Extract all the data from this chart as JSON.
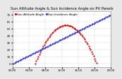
{
  "title": "Sun Altitude Angle & Sun Incidence Angle on PV Panels",
  "legend_labels": [
    "Sun Altitude Angle",
    "Sun Incidence Angle"
  ],
  "colors": [
    "#cc0000",
    "#3333cc"
  ],
  "background_color": "#e8e8e8",
  "plot_bg": "#ffffff",
  "ylim": [
    -5,
    75
  ],
  "xlim": [
    0,
    24
  ],
  "grid_color": "#aaaaaa",
  "marker_size": 1.2,
  "title_fontsize": 3.8,
  "legend_fontsize": 3.0,
  "tick_fontsize": 2.8,
  "yticks": [
    0,
    10,
    20,
    30,
    40,
    50,
    60,
    70
  ],
  "xtick_hours": [
    0,
    4,
    8,
    12,
    16,
    20,
    24
  ],
  "sun_rise": 5.5,
  "sun_set": 20.5,
  "solar_noon": 13.0,
  "peak_altitude": 55,
  "panel_tilt": 30,
  "incidence_min": 5,
  "incidence_max": 65
}
